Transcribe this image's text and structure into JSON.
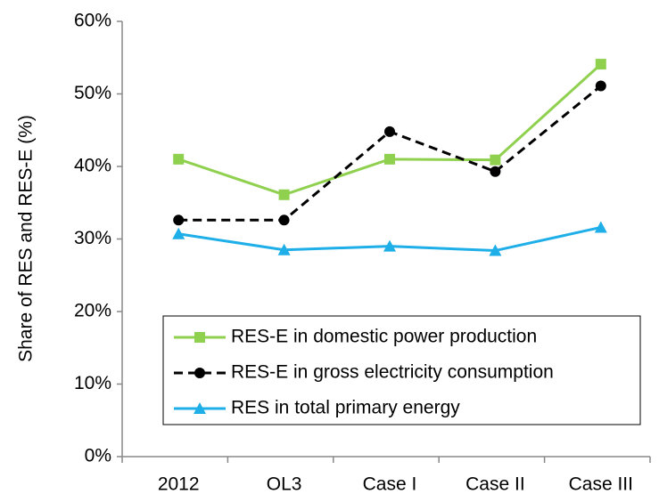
{
  "chart_data": {
    "type": "line",
    "y_label": "Share of RES and RES-E (%)",
    "categories": [
      "2012",
      "OL3",
      "Case I",
      "Case II",
      "Case III"
    ],
    "series": [
      {
        "name": "RES-E in domestic power production",
        "color": "#8fd14f",
        "marker": "square",
        "linestyle": "solid",
        "values": [
          41,
          36.1,
          41,
          40.9,
          54.1
        ]
      },
      {
        "name": "RES-E in gross electricity consumption",
        "color": "#000000",
        "marker": "circle",
        "linestyle": "dashed",
        "values": [
          32.6,
          32.6,
          44.8,
          39.3,
          51.1
        ]
      },
      {
        "name": "RES in total primary energy",
        "color": "#1eaee8",
        "marker": "triangle",
        "linestyle": "solid",
        "values": [
          30.7,
          28.5,
          29,
          28.4,
          31.6
        ]
      }
    ],
    "ylim": [
      0,
      60
    ],
    "yticks": [
      {
        "value": 0,
        "label": "0%"
      },
      {
        "value": 10,
        "label": "10%"
      },
      {
        "value": 20,
        "label": "20%"
      },
      {
        "value": 30,
        "label": "30%"
      },
      {
        "value": 40,
        "label": "40%"
      },
      {
        "value": 50,
        "label": "50%"
      },
      {
        "value": 60,
        "label": "60%"
      }
    ],
    "grid": false,
    "legend": "lower right"
  }
}
